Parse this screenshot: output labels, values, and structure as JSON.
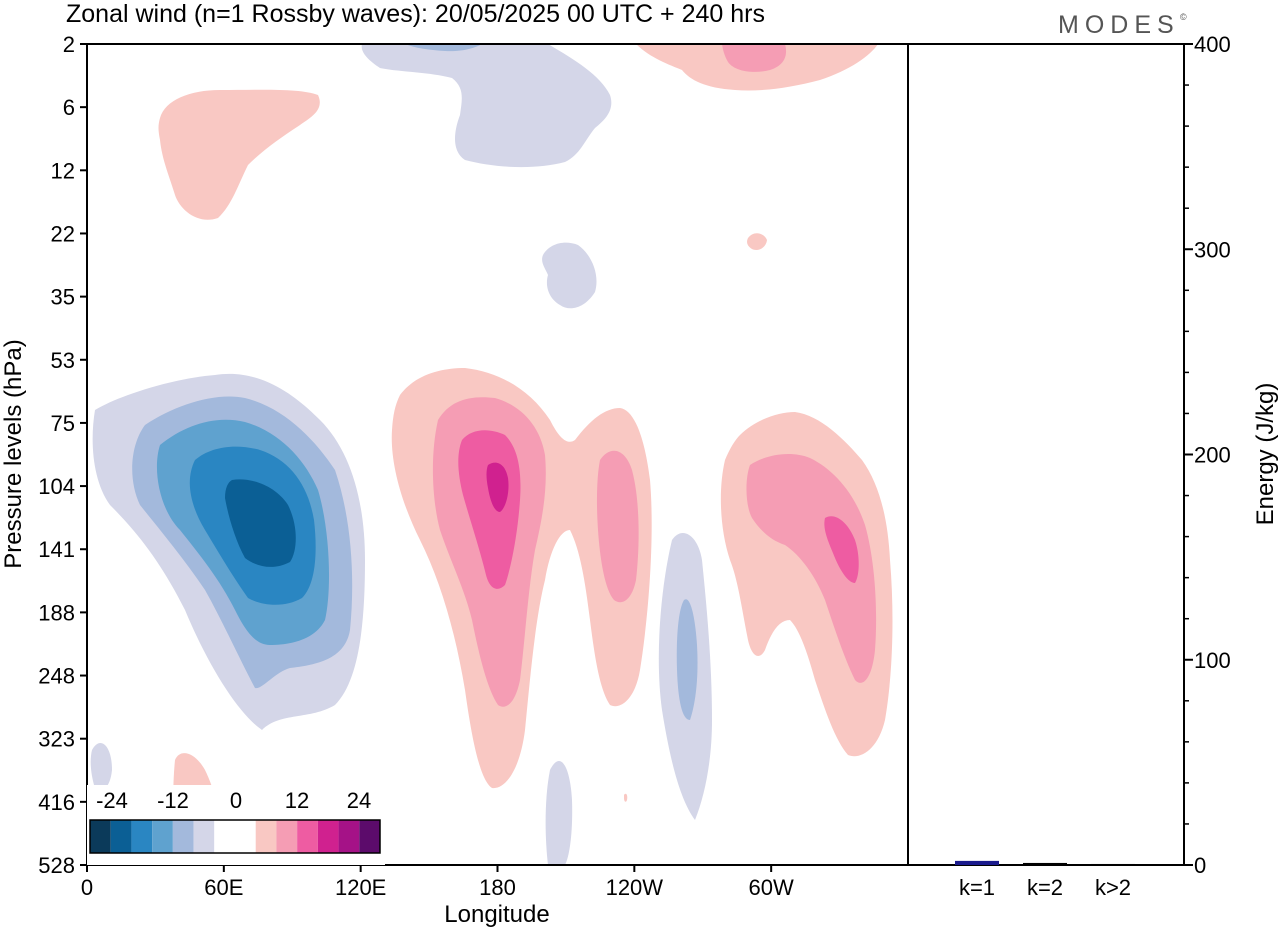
{
  "title": "Zonal wind (n=1 Rossby waves):  20/05/2025  00 UTC  + 240 hrs",
  "logo": "MODES",
  "logo_mark": "©",
  "chart_data": [
    {
      "type": "heatmap",
      "title": "Zonal wind (n=1 Rossby waves):  20/05/2025  00 UTC  + 240 hrs",
      "xlabel": "Longitude",
      "ylabel": "Pressure levels (hPa)",
      "x_ticks": [
        "0",
        "60E",
        "120E",
        "180",
        "120W",
        "60W"
      ],
      "x_tick_values": [
        0,
        60,
        120,
        180,
        240,
        300
      ],
      "xlim": [
        0,
        360
      ],
      "y_ticks": [
        "2",
        "6",
        "12",
        "22",
        "35",
        "53",
        "75",
        "104",
        "141",
        "188",
        "248",
        "323",
        "416",
        "528"
      ],
      "y_scale": "pressure levels (reversed, equally spaced ticks)",
      "colorbar": {
        "labels": [
          "-24",
          "-12",
          "0",
          "12",
          "24"
        ],
        "colors": [
          "#0b3a5a",
          "#0b5f95",
          "#2a86c2",
          "#5fa2cf",
          "#a3b9dc",
          "#d4d6e8",
          "#ffffff",
          "#ffffff",
          "#f9c8c3",
          "#f59db4",
          "#ee5ca2",
          "#d0218f",
          "#a51287",
          "#5c0b6b"
        ]
      },
      "features": [
        {
          "sign": "negative",
          "center_lon": 80,
          "center_level": "120",
          "peak_class": "-24"
        },
        {
          "sign": "negative",
          "center_lon": 120,
          "center_level": "2",
          "peak_class": "-12"
        },
        {
          "sign": "negative",
          "center_lon": 202,
          "center_level": "30",
          "peak_class": "-6"
        },
        {
          "sign": "negative",
          "center_lon": 262,
          "center_level": "220",
          "peak_class": "-12"
        },
        {
          "sign": "negative",
          "center_lon": 5,
          "center_level": "350",
          "peak_class": "-6"
        },
        {
          "sign": "positive",
          "center_lon": 180,
          "center_level": "104",
          "peak_class": "18"
        },
        {
          "sign": "positive",
          "center_lon": 230,
          "center_level": "130",
          "peak_class": "12"
        },
        {
          "sign": "positive",
          "center_lon": 338,
          "center_level": "130",
          "peak_class": "18"
        },
        {
          "sign": "positive",
          "center_lon": 285,
          "center_level": "2",
          "peak_class": "12"
        },
        {
          "sign": "positive",
          "center_lon": 45,
          "center_level": "8",
          "peak_class": "6"
        },
        {
          "sign": "positive",
          "center_lon": 42,
          "center_level": "416",
          "peak_class": "6"
        }
      ]
    },
    {
      "type": "bar",
      "ylabel": "Energy (J/kg)",
      "categories": [
        "k=1",
        "k=2",
        "k>2"
      ],
      "values": [
        2,
        1,
        0.5
      ],
      "ylim": [
        0,
        400
      ],
      "y_ticks": [
        "0",
        "100",
        "200",
        "300",
        "400"
      ],
      "colors": [
        "#1a1a8c",
        "#000000",
        "#000000"
      ]
    }
  ]
}
